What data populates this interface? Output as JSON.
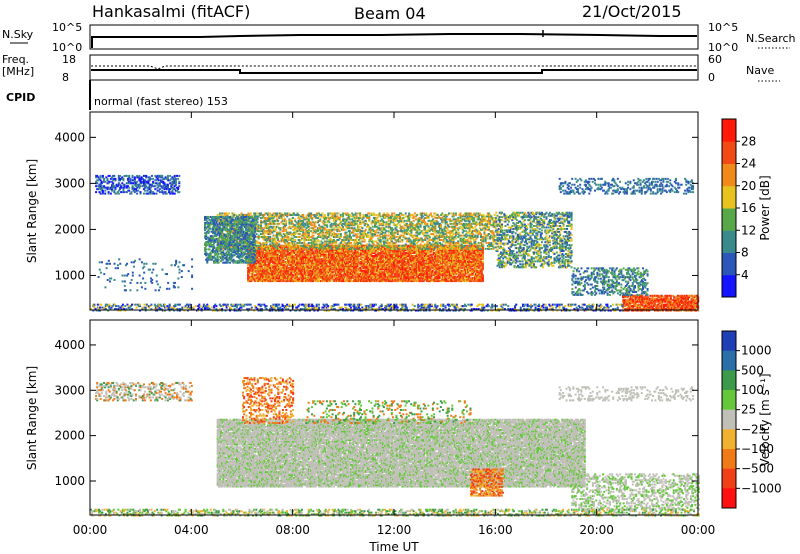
{
  "header": {
    "station": "Hankasalmi (fitACF)",
    "beam": "Beam 04",
    "date": "21/Oct/2015"
  },
  "top_panels": {
    "nsky_label": "N.Sky",
    "nsearch_label": "N.Search",
    "nsky_ticks": [
      "10^5",
      "10^0"
    ],
    "nsearch_ticks": [
      "10^5",
      "10^0"
    ],
    "freq_label_1": "Freq.",
    "freq_label_2": "[MHz]",
    "freq_ticks": [
      "18",
      "8"
    ],
    "nave_label": "Nave",
    "nave_ticks": [
      "60",
      "0"
    ],
    "cpid_label": "CPID",
    "cpid_text": "normal (fast stereo) 153"
  },
  "chart_data": [
    {
      "type": "heatmap",
      "name": "power",
      "ylabel": "Slant Range [km]",
      "yticks": [
        "1000",
        "2000",
        "3000",
        "4000"
      ],
      "ylim": [
        250,
        4550
      ],
      "xlim": [
        0,
        24
      ],
      "colorbar_label": "Power [dB]",
      "colorbar_ticks": [
        "4",
        "8",
        "12",
        "16",
        "20",
        "24",
        "28"
      ],
      "color_levels": [
        "#1414ff",
        "#2a57b8",
        "#3a8a8c",
        "#58a84a",
        "#e6c31e",
        "#f08a1a",
        "#f24a14",
        "#ff1a0a"
      ]
    },
    {
      "type": "heatmap",
      "name": "velocity",
      "ylabel": "Slant Range [km]",
      "yticks": [
        "1000",
        "2000",
        "3000",
        "4000"
      ],
      "ylim": [
        250,
        4550
      ],
      "xlim": [
        0,
        24
      ],
      "colorbar_label": "Velocity [m s⁻¹]",
      "colorbar_ticks": [
        "1000",
        "500",
        "100",
        "25",
        "−25",
        "−100",
        "−500",
        "−1000"
      ],
      "color_levels": [
        "#1e3fb5",
        "#2a6fa8",
        "#3d9a4a",
        "#64c83a",
        "#c0c0b8",
        "#f0b030",
        "#f07a18",
        "#f04018",
        "#ff1010"
      ]
    }
  ],
  "xaxis": {
    "ticks": [
      "00:00",
      "04:00",
      "08:00",
      "12:00",
      "16:00",
      "20:00",
      "00:00"
    ],
    "label": "Time UT"
  }
}
